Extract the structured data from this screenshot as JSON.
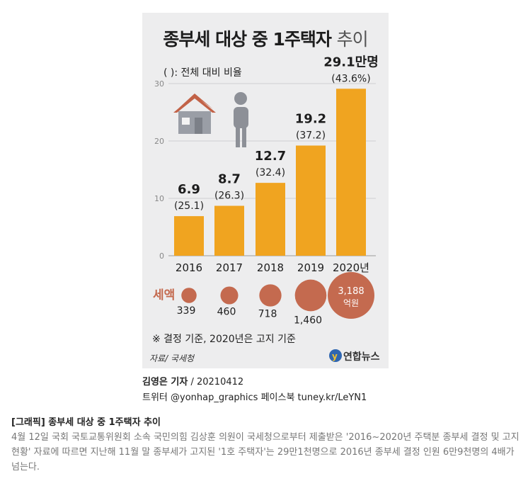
{
  "chart_data": {
    "type": "bar",
    "title": "종부세 대상 중 1주택자",
    "title_suffix": "추이",
    "note": "( ): 전체 대비 비율",
    "categories": [
      "2016",
      "2017",
      "2018",
      "2019",
      "2020년"
    ],
    "series": [
      {
        "values": [
          6.9,
          8.7,
          12.7,
          19.2,
          29.1
        ],
        "value_labels": [
          "6.9",
          "8.7",
          "12.7",
          "19.2",
          "29.1만명"
        ],
        "ratio_labels": [
          "(25.1)",
          "(26.3)",
          "(32.4)",
          "(37.2)",
          "(43.6%)"
        ]
      }
    ],
    "yticks": [
      0,
      10,
      20,
      30
    ],
    "ylim": [
      0,
      30
    ],
    "bar_color": "#f0a420",
    "tax": {
      "label": "세액",
      "values": [
        339,
        460,
        718,
        1460,
        3188
      ],
      "value_labels": [
        "339",
        "460",
        "718",
        "1,460",
        "3,188"
      ],
      "unit": "억원",
      "color": "#c46a4f"
    },
    "footnote": "※ 결정 기준, 2020년은 고지 기준",
    "source": "자료/ 국세청",
    "logo": "연합뉴스"
  },
  "credits": {
    "author": "김영은 기자",
    "date": "/ 20210412",
    "sns": "트위터 @yonhap_graphics  페이스북 tuney.kr/LeYN1"
  },
  "caption": {
    "title": "[그래픽] 종부세 대상 중 1주택자 추이",
    "body": "4월 12일 국회 국토교통위원회 소속 국민의힘 김상훈 의원이 국세청으로부터 제출받은 '2016~2020년 주택분 종부세 결정 및 고지 현황' 자료에 따르면 지난해 11월 말 종부세가 고지된 '1호 주택자'는 29만1천명으로 2016년 종부세 결정 인원 6만9천명의 4배가 넘는다."
  },
  "colors": {
    "panel": "#ededee",
    "house_wall": "#9a9ea6",
    "house_roof": "#c26247",
    "person": "#8d9097"
  }
}
